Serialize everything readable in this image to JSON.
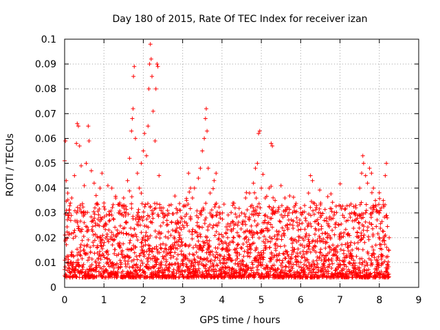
{
  "chart_data": {
    "type": "scatter",
    "title": "Day 180 of 2015, Rate Of TEC Index for receiver izan",
    "xlabel": "GPS time / hours",
    "ylabel": "ROTI / TECUs",
    "xlim": [
      0,
      9
    ],
    "ylim": [
      0,
      0.1
    ],
    "xticks": [
      0,
      1,
      2,
      3,
      4,
      5,
      6,
      7,
      8,
      9
    ],
    "yticks": [
      0,
      0.01,
      0.02,
      0.03,
      0.04,
      0.05,
      0.06,
      0.07,
      0.08,
      0.09,
      0.1
    ],
    "xtick_labels": [
      "0",
      "1",
      "2",
      "3",
      "4",
      "5",
      "6",
      "7",
      "8",
      "9"
    ],
    "ytick_labels": [
      "0",
      "0.01",
      "0.02",
      "0.03",
      "0.04",
      "0.05",
      "0.06",
      "0.07",
      "0.08",
      "0.09",
      "0.1"
    ],
    "grid": true,
    "marker": "plus",
    "color": "#ff0000",
    "data_x_range": [
      0,
      8.25
    ],
    "series": [
      {
        "name": "ROTI",
        "points": [
          [
            0.0,
            0.051
          ],
          [
            0.02,
            0.059
          ],
          [
            0.04,
            0.043
          ],
          [
            0.08,
            0.038
          ],
          [
            0.12,
            0.03
          ],
          [
            0.18,
            0.036
          ],
          [
            0.25,
            0.045
          ],
          [
            0.3,
            0.058
          ],
          [
            0.32,
            0.066
          ],
          [
            0.35,
            0.065
          ],
          [
            0.38,
            0.057
          ],
          [
            0.42,
            0.049
          ],
          [
            0.5,
            0.041
          ],
          [
            0.55,
            0.05
          ],
          [
            0.6,
            0.065
          ],
          [
            0.62,
            0.059
          ],
          [
            0.68,
            0.047
          ],
          [
            0.75,
            0.042
          ],
          [
            0.8,
            0.037
          ],
          [
            0.9,
            0.04
          ],
          [
            0.95,
            0.046
          ],
          [
            1.0,
            0.034
          ],
          [
            1.1,
            0.041
          ],
          [
            1.2,
            0.04
          ],
          [
            1.3,
            0.036
          ],
          [
            1.4,
            0.034
          ],
          [
            1.5,
            0.036
          ],
          [
            1.6,
            0.043
          ],
          [
            1.65,
            0.052
          ],
          [
            1.7,
            0.063
          ],
          [
            1.72,
            0.068
          ],
          [
            1.74,
            0.072
          ],
          [
            1.75,
            0.085
          ],
          [
            1.77,
            0.089
          ],
          [
            1.8,
            0.06
          ],
          [
            1.85,
            0.046
          ],
          [
            1.9,
            0.04
          ],
          [
            1.95,
            0.05
          ],
          [
            2.0,
            0.055
          ],
          [
            2.03,
            0.062
          ],
          [
            2.08,
            0.053
          ],
          [
            2.12,
            0.065
          ],
          [
            2.14,
            0.08
          ],
          [
            2.16,
            0.09
          ],
          [
            2.18,
            0.098
          ],
          [
            2.2,
            0.092
          ],
          [
            2.22,
            0.085
          ],
          [
            2.25,
            0.071
          ],
          [
            2.3,
            0.059
          ],
          [
            2.32,
            0.08
          ],
          [
            2.35,
            0.09
          ],
          [
            2.37,
            0.089
          ],
          [
            2.4,
            0.045
          ],
          [
            2.5,
            0.032
          ],
          [
            2.6,
            0.027
          ],
          [
            2.7,
            0.021
          ],
          [
            2.8,
            0.018
          ],
          [
            2.9,
            0.022
          ],
          [
            3.0,
            0.025
          ],
          [
            3.1,
            0.035
          ],
          [
            3.15,
            0.046
          ],
          [
            3.2,
            0.04
          ],
          [
            3.25,
            0.036
          ],
          [
            3.3,
            0.04
          ],
          [
            3.4,
            0.044
          ],
          [
            3.45,
            0.048
          ],
          [
            3.5,
            0.055
          ],
          [
            3.55,
            0.06
          ],
          [
            3.58,
            0.068
          ],
          [
            3.6,
            0.072
          ],
          [
            3.62,
            0.063
          ],
          [
            3.65,
            0.048
          ],
          [
            3.7,
            0.038
          ],
          [
            3.8,
            0.043
          ],
          [
            3.85,
            0.046
          ],
          [
            3.95,
            0.03
          ],
          [
            4.1,
            0.022
          ],
          [
            4.2,
            0.018
          ],
          [
            4.3,
            0.02
          ],
          [
            4.4,
            0.025
          ],
          [
            4.5,
            0.03
          ],
          [
            4.6,
            0.036
          ],
          [
            4.7,
            0.038
          ],
          [
            4.8,
            0.042
          ],
          [
            4.85,
            0.048
          ],
          [
            4.9,
            0.05
          ],
          [
            4.93,
            0.062
          ],
          [
            4.96,
            0.063
          ],
          [
            5.0,
            0.04
          ],
          [
            5.1,
            0.036
          ],
          [
            5.2,
            0.04
          ],
          [
            5.25,
            0.058
          ],
          [
            5.28,
            0.057
          ],
          [
            5.35,
            0.035
          ],
          [
            5.5,
            0.041
          ],
          [
            5.6,
            0.036
          ],
          [
            5.7,
            0.03
          ],
          [
            5.8,
            0.025
          ],
          [
            5.9,
            0.028
          ],
          [
            6.0,
            0.03
          ],
          [
            6.1,
            0.033
          ],
          [
            6.2,
            0.038
          ],
          [
            6.25,
            0.045
          ],
          [
            6.3,
            0.043
          ],
          [
            6.4,
            0.033
          ],
          [
            6.5,
            0.03
          ],
          [
            6.6,
            0.027
          ],
          [
            6.7,
            0.025
          ],
          [
            6.8,
            0.023
          ],
          [
            6.9,
            0.026
          ],
          [
            7.0,
            0.02
          ],
          [
            7.1,
            0.022
          ],
          [
            7.2,
            0.027
          ],
          [
            7.3,
            0.03
          ],
          [
            7.4,
            0.033
          ],
          [
            7.5,
            0.04
          ],
          [
            7.55,
            0.046
          ],
          [
            7.58,
            0.053
          ],
          [
            7.6,
            0.05
          ],
          [
            7.65,
            0.045
          ],
          [
            7.7,
            0.042
          ],
          [
            7.75,
            0.048
          ],
          [
            7.8,
            0.046
          ],
          [
            7.85,
            0.04
          ],
          [
            7.9,
            0.035
          ],
          [
            8.0,
            0.03
          ],
          [
            8.1,
            0.035
          ],
          [
            8.15,
            0.045
          ],
          [
            8.18,
            0.05
          ],
          [
            8.2,
            0.028
          ],
          [
            8.25,
            0.02
          ]
        ]
      }
    ]
  }
}
